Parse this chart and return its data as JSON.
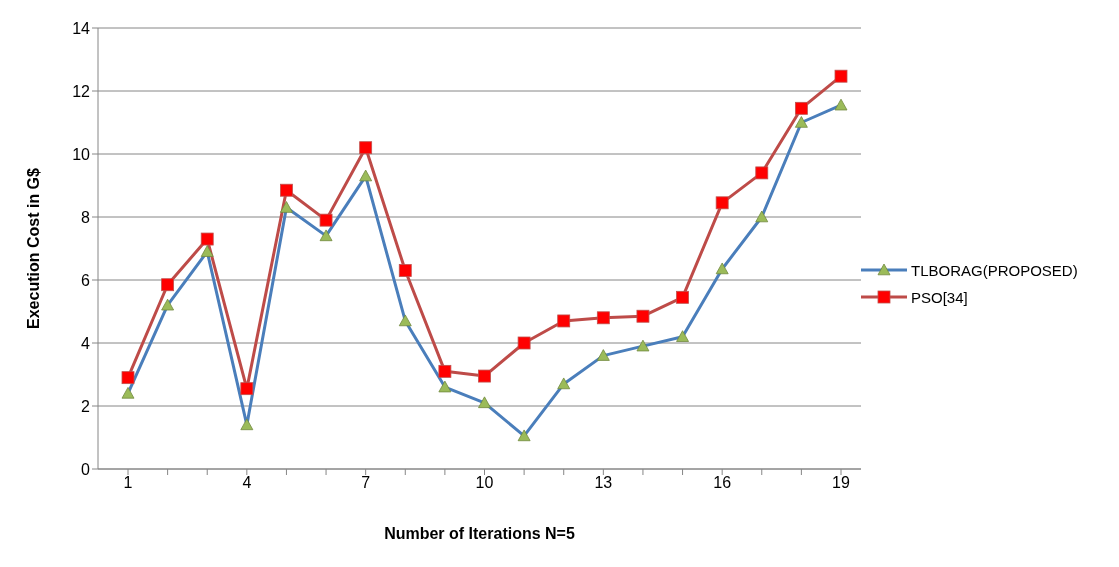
{
  "chart_data": {
    "type": "line",
    "xlabel": "Number of Iterations N=5",
    "ylabel": "Execution Cost in G$",
    "categories": [
      "1",
      null,
      null,
      "4",
      null,
      null,
      "7",
      null,
      null,
      "10",
      null,
      null,
      "13",
      null,
      null,
      "16",
      null,
      null,
      "19"
    ],
    "series": [
      {
        "name": "TLBORAG(PROPOSED)",
        "color": "#4a7ebb",
        "marker": "triangle",
        "values": [
          2.4,
          5.2,
          6.9,
          1.4,
          8.3,
          7.4,
          9.3,
          4.7,
          2.6,
          2.1,
          1.05,
          2.7,
          3.6,
          3.9,
          4.2,
          6.35,
          8.0,
          11.0,
          11.55
        ]
      },
      {
        "name": "PSO[34]",
        "color": "#be4b48",
        "marker": "square",
        "values": [
          2.9,
          5.85,
          7.3,
          2.55,
          8.85,
          7.9,
          10.2,
          6.3,
          3.1,
          2.95,
          4.0,
          4.7,
          4.8,
          4.85,
          5.45,
          8.45,
          9.4,
          11.45,
          12.47
        ]
      }
    ],
    "ylim": [
      0,
      14
    ],
    "yticks": [
      0,
      2,
      4,
      6,
      8,
      10,
      12,
      14
    ],
    "grid": "y",
    "legend": "right",
    "line_style": "solid"
  }
}
